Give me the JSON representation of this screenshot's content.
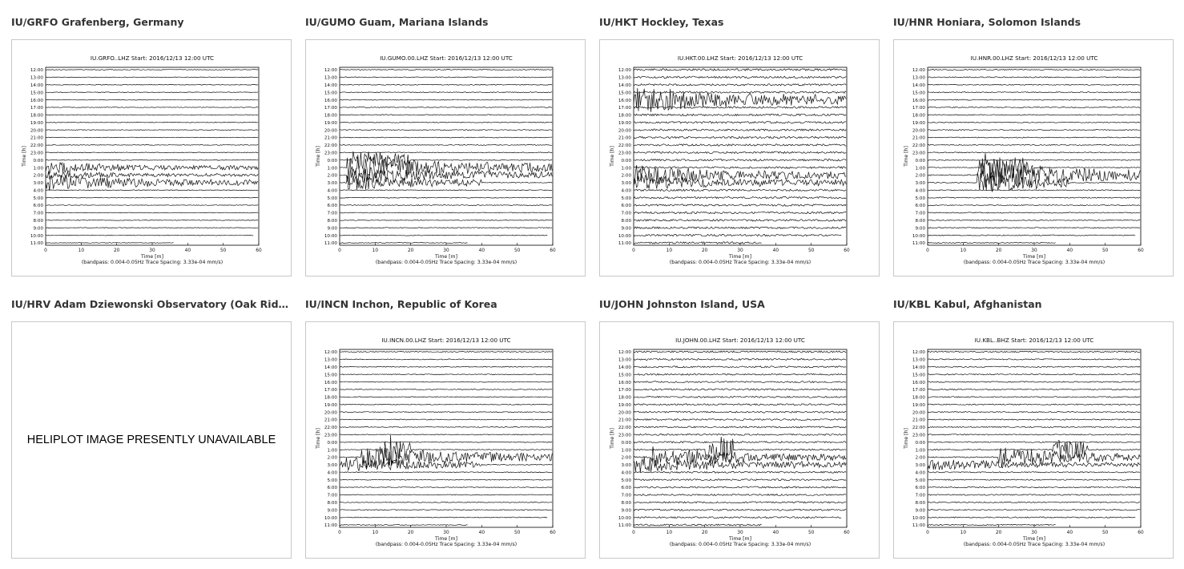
{
  "stations": [
    {
      "title": "IU/GRFO Grafenberg, Germany",
      "available": true,
      "plot_title": "IU.GRFO..LHZ  Start: 2016/12/13 12:00 UTC"
    },
    {
      "title": "IU/GUMO Guam, Mariana Islands",
      "available": true,
      "plot_title": "IU.GUMO.00.LHZ  Start: 2016/12/13 12:00 UTC"
    },
    {
      "title": "IU/HKT Hockley, Texas",
      "available": true,
      "plot_title": "IU.HKT.00.LHZ  Start: 2016/12/13 12:00 UTC"
    },
    {
      "title": "IU/HNR Honiara, Solomon Islands",
      "available": true,
      "plot_title": "IU.HNR.00.LHZ  Start: 2016/12/13 12:00 UTC"
    },
    {
      "title": "IU/HRV Adam Dziewonski Observatory (Oak Ridge), Massa...",
      "available": false,
      "unavailable_text": "HELIPLOT IMAGE PRESENTLY UNAVAILABLE"
    },
    {
      "title": "IU/INCN Inchon, Republic of Korea",
      "available": true,
      "plot_title": "IU.INCN.00.LHZ  Start: 2016/12/13 12:00 UTC"
    },
    {
      "title": "IU/JOHN Johnston Island, USA",
      "available": true,
      "plot_title": "IU.JOHN.00.LHZ  Start: 2016/12/13 12:00 UTC"
    },
    {
      "title": "IU/KBL Kabul, Afghanistan",
      "available": true,
      "plot_title": "IU.KBL..BHZ  Start: 2016/12/13 12:00 UTC"
    }
  ],
  "plot": {
    "y_labels": [
      "12:00",
      "13:00",
      "14:00",
      "15:00",
      "16:00",
      "17:00",
      "18:00",
      "19:00",
      "20:00",
      "21:00",
      "22:00",
      "23:00",
      "0:00",
      "1:00",
      "2:00",
      "3:00",
      "4:00",
      "5:00",
      "6:00",
      "7:00",
      "8:00",
      "9:00",
      "10:00",
      "11:00"
    ],
    "x_ticks": [
      "0",
      "10",
      "20",
      "30",
      "40",
      "50",
      "60"
    ],
    "x_label": "Time [m]",
    "y_label": "Time [h]",
    "footer": "(bandpass: 0.004-0.05Hz  Trace Spacing: 3.33e-04 mm/s)"
  }
}
